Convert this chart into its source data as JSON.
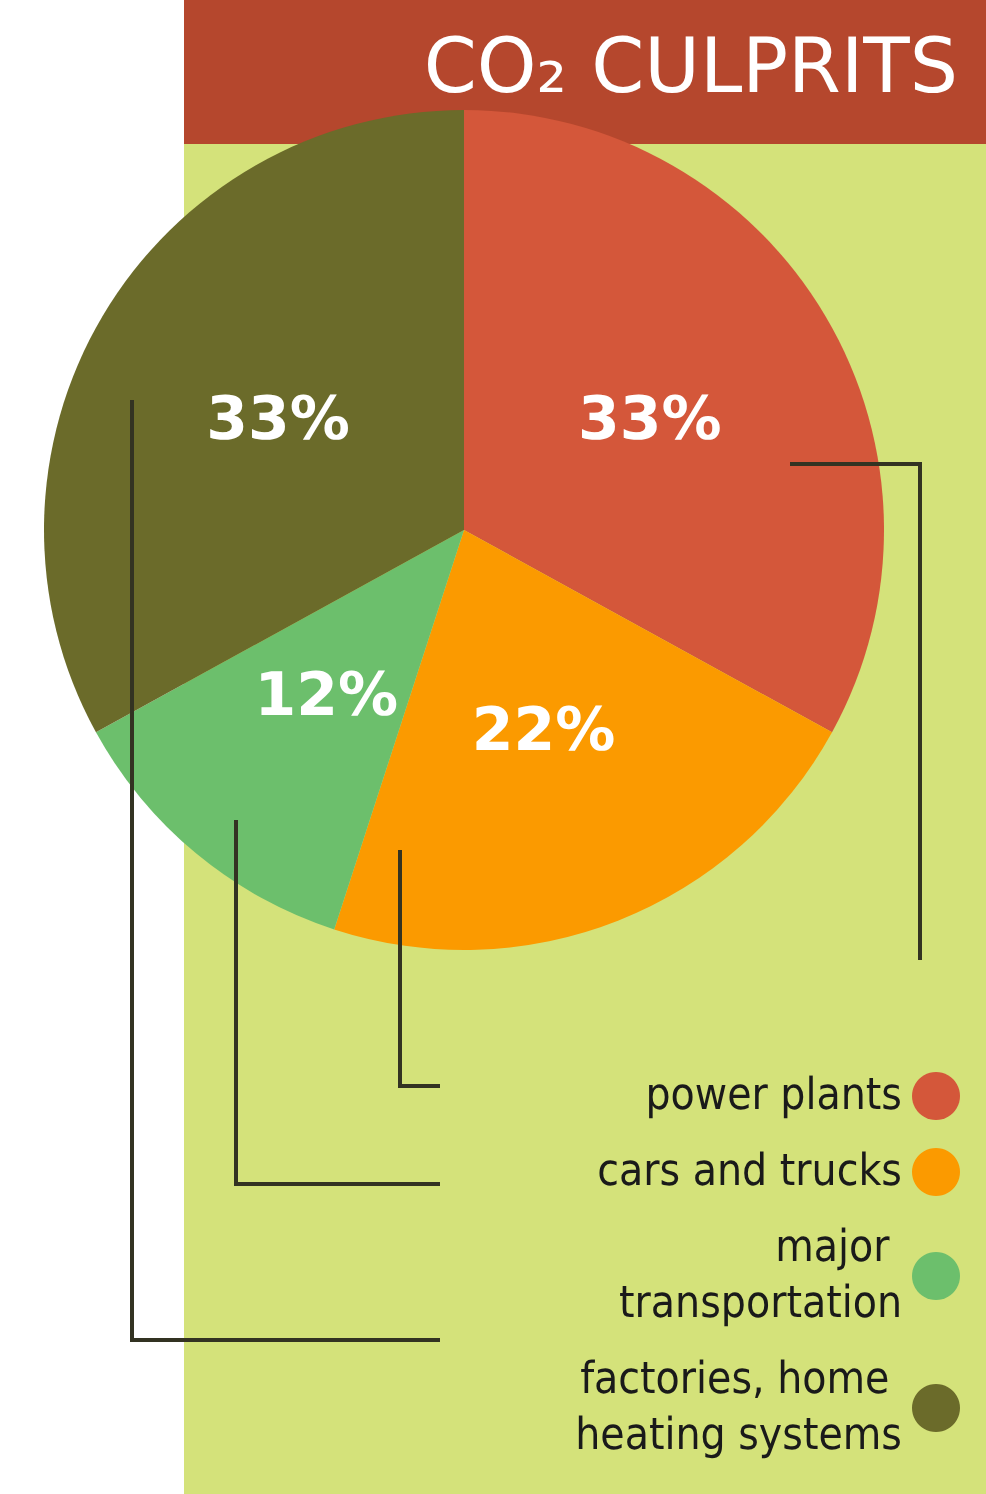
{
  "chart_data": {
    "type": "pie",
    "title": "CO₂ CULPRITS",
    "categories": [
      "power plants",
      "cars and trucks",
      "major transportation",
      "factories, home heating systems"
    ],
    "values": [
      33,
      22,
      12,
      33
    ],
    "colors": [
      "#d4573a",
      "#fb9a00",
      "#6cbf6c",
      "#6b6b2a"
    ],
    "value_labels": [
      "33%",
      "22%",
      "12%",
      "33%"
    ],
    "legend": "bottom right"
  }
}
